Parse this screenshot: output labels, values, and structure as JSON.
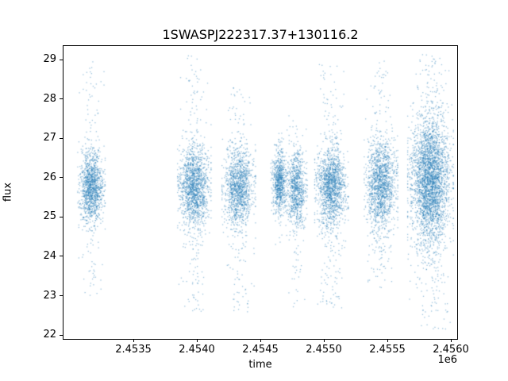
{
  "figure": {
    "background": "#ffffff"
  },
  "chart_data": {
    "type": "scatter",
    "title": "1SWASPJ222317.37+130116.2",
    "xlabel": "time",
    "ylabel": "flux",
    "x_offset_label": "1e6",
    "marker_color": "#1f77b4",
    "marker_alpha": 0.45,
    "grid": false,
    "legend": null,
    "xlim": [
      2452950,
      2456050
    ],
    "ylim": [
      21.9,
      29.35
    ],
    "x_ticks": [
      2453500,
      2454000,
      2454500,
      2455000,
      2455500,
      2456000
    ],
    "x_tick_labels": [
      "2.4535",
      "2.4540",
      "2.4545",
      "2.4550",
      "2.4555",
      "2.4560"
    ],
    "y_ticks": [
      22,
      23,
      24,
      25,
      26,
      27,
      28,
      29
    ],
    "y_tick_labels": [
      "22",
      "23",
      "24",
      "25",
      "26",
      "27",
      "28",
      "29"
    ],
    "clusters": [
      {
        "x_center": 2453170,
        "x_spread": 45,
        "n_core": 1200,
        "flux_mean": 25.75,
        "flux_sd": 0.45,
        "n_tail": 130,
        "tail_min": 23.0,
        "tail_max": 29.0
      },
      {
        "x_center": 2453980,
        "x_spread": 55,
        "n_core": 1400,
        "flux_mean": 25.75,
        "flux_sd": 0.5,
        "n_tail": 200,
        "tail_min": 22.6,
        "tail_max": 29.1
      },
      {
        "x_center": 2454330,
        "x_spread": 55,
        "n_core": 1200,
        "flux_mean": 25.75,
        "flux_sd": 0.5,
        "n_tail": 160,
        "tail_min": 22.5,
        "tail_max": 28.3
      },
      {
        "x_center": 2454650,
        "x_spread": 28,
        "n_core": 700,
        "flux_mean": 25.9,
        "flux_sd": 0.38,
        "n_tail": 50,
        "tail_min": 24.3,
        "tail_max": 27.3
      },
      {
        "x_center": 2454785,
        "x_spread": 35,
        "n_core": 800,
        "flux_mean": 25.7,
        "flux_sd": 0.5,
        "n_tail": 70,
        "tail_min": 22.7,
        "tail_max": 27.6
      },
      {
        "x_center": 2455060,
        "x_spread": 55,
        "n_core": 1400,
        "flux_mean": 25.75,
        "flux_sd": 0.5,
        "n_tail": 190,
        "tail_min": 22.6,
        "tail_max": 29.0
      },
      {
        "x_center": 2455450,
        "x_spread": 55,
        "n_core": 1400,
        "flux_mean": 25.8,
        "flux_sd": 0.55,
        "n_tail": 170,
        "tail_min": 23.2,
        "tail_max": 29.0
      },
      {
        "x_center": 2455840,
        "x_spread": 75,
        "n_core": 3000,
        "flux_mean": 25.9,
        "flux_sd": 0.8,
        "n_tail": 300,
        "tail_min": 22.15,
        "tail_max": 29.15
      }
    ]
  }
}
